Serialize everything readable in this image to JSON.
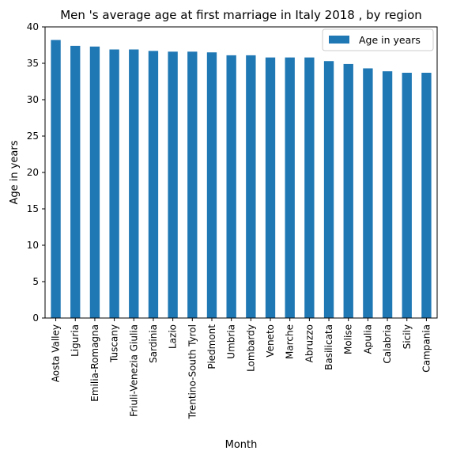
{
  "chart_data": {
    "type": "bar",
    "title": "Men 's average age at first marriage in Italy 2018 , by region",
    "xlabel": "Month",
    "ylabel": "Age in years",
    "ylim": [
      0,
      40
    ],
    "yticks": [
      0,
      5,
      10,
      15,
      20,
      25,
      30,
      35,
      40
    ],
    "grid": false,
    "legend_position": "top-right",
    "categories": [
      "Aosta Valley",
      "Liguria",
      "Emilia-Romagna",
      "Tuscany",
      "Friuli-Venezia Giulia",
      "Sardinia",
      "Lazio",
      "Trentino-South Tyrol",
      "Piedmont",
      "Umbria",
      "Lombardy",
      "Veneto",
      "Marche",
      "Abruzzo",
      "Basilicata",
      "Molise",
      "Apulia",
      "Calabria",
      "Sicily",
      "Campania"
    ],
    "series": [
      {
        "name": "Age in years",
        "color": "#1f77b4",
        "values": [
          38.2,
          37.4,
          37.3,
          36.9,
          36.9,
          36.7,
          36.6,
          36.6,
          36.5,
          36.1,
          36.1,
          35.8,
          35.8,
          35.8,
          35.3,
          34.9,
          34.3,
          33.9,
          33.7,
          33.7
        ]
      }
    ]
  }
}
